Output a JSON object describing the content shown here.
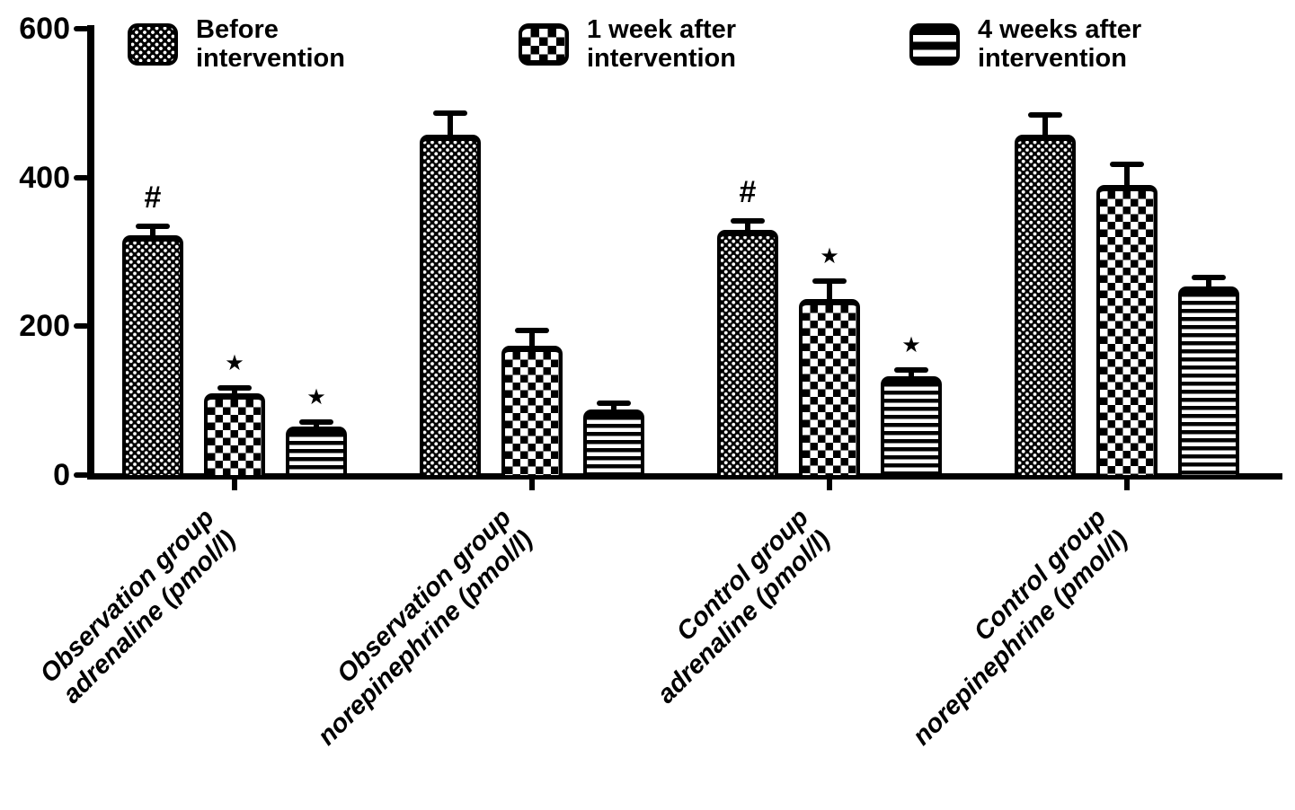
{
  "figure": {
    "background": "#ffffff",
    "ink_color": "#000000"
  },
  "chart_data": {
    "type": "bar",
    "title": "",
    "xlabel": "",
    "ylabel": "",
    "ylim": [
      0,
      600
    ],
    "yticks": [
      0,
      200,
      400,
      600
    ],
    "grid": false,
    "legend_position": "top",
    "error_bars": "upper-sd",
    "categories": [
      {
        "line1": "Observation group",
        "line2": "adrenaline (pmol/l)"
      },
      {
        "line1": "Observation group",
        "line2": "norepinephrine (pmol/l)"
      },
      {
        "line1": "Control group",
        "line2": "adrenaline (pmol/l)"
      },
      {
        "line1": "Control group",
        "line2": "norepinephrine (pmol/l)"
      }
    ],
    "series": [
      {
        "name": "Before intervention",
        "label_lines": [
          "Before",
          "intervention"
        ],
        "pattern": "fine-checkerboard",
        "values": [
          322,
          458,
          330,
          457
        ],
        "errors": [
          13,
          28,
          12,
          27
        ],
        "annotations": [
          "#",
          "",
          "#",
          ""
        ]
      },
      {
        "name": "1 week after intervention",
        "label_lines": [
          "1 week after",
          "intervention"
        ],
        "pattern": "coarse-checkerboard",
        "values": [
          110,
          174,
          237,
          390
        ],
        "errors": [
          7,
          20,
          24,
          28
        ],
        "annotations": [
          "*",
          "",
          "*",
          ""
        ]
      },
      {
        "name": "4 weeks after intervention",
        "label_lines": [
          "4 weeks after",
          "intervention"
        ],
        "pattern": "horizontal-stripes",
        "values": [
          65,
          88,
          133,
          254
        ],
        "errors": [
          6,
          8,
          8,
          11
        ],
        "annotations": [
          "*",
          "",
          "*",
          ""
        ]
      }
    ]
  }
}
